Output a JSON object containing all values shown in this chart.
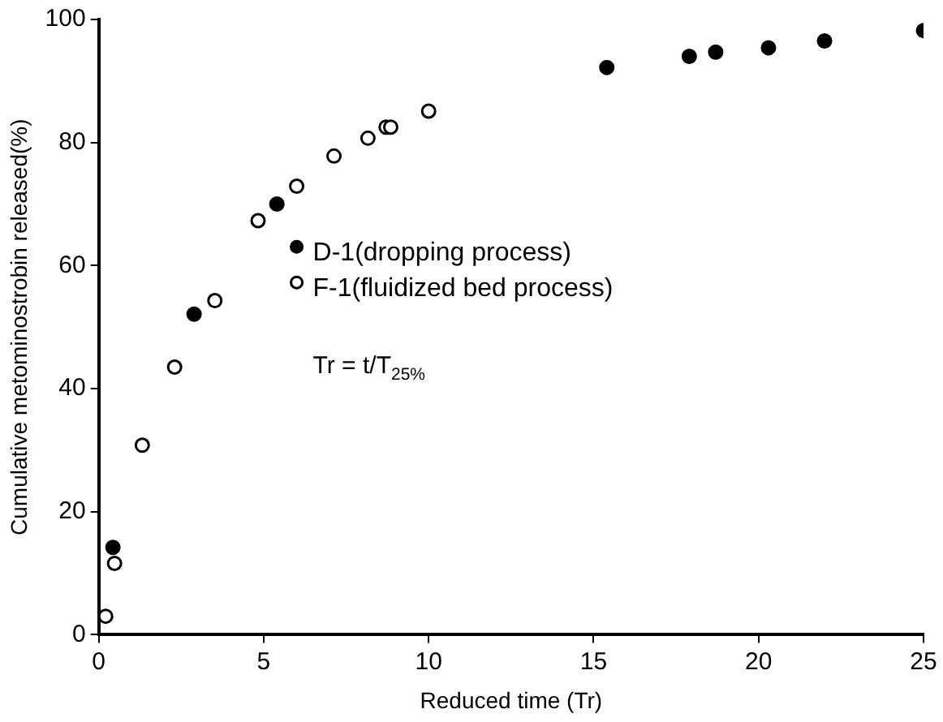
{
  "chart_data": {
    "type": "scatter",
    "xlabel": "Reduced time (Tr)",
    "ylabel": "Cumulative metominostrobin released(%)",
    "xlim": [
      0,
      25
    ],
    "xticks": [
      0,
      5,
      10,
      15,
      20,
      25
    ],
    "ylim": [
      0,
      100
    ],
    "yticks": [
      0,
      20,
      40,
      60,
      80,
      100
    ],
    "grid": false,
    "legend": "center",
    "marker": "circle",
    "annotations": [
      "Tr = t/T$_{25%}$"
    ],
    "series": [
      {
        "name": "D-1(dropping process)",
        "color": "#000000",
        "x": [
          0.43,
          2.89,
          5.4,
          15.4,
          17.9,
          18.7,
          20.3,
          22.0,
          25.0
        ],
        "values": [
          14.2,
          52.1,
          70.0,
          92.2,
          94.0,
          94.7,
          95.4,
          96.5,
          98.2
        ]
      },
      {
        "name": "F-1(fluidized bed process)",
        "color": "#ffffff",
        "x": [
          0.21,
          0.48,
          1.32,
          2.3,
          3.52,
          4.83,
          6.0,
          7.13,
          8.16,
          8.71,
          8.85,
          10.0
        ],
        "values": [
          3.0,
          11.6,
          30.8,
          43.5,
          54.3,
          67.3,
          72.9,
          77.8,
          80.7,
          82.5,
          82.5,
          85.1
        ]
      }
    ]
  }
}
